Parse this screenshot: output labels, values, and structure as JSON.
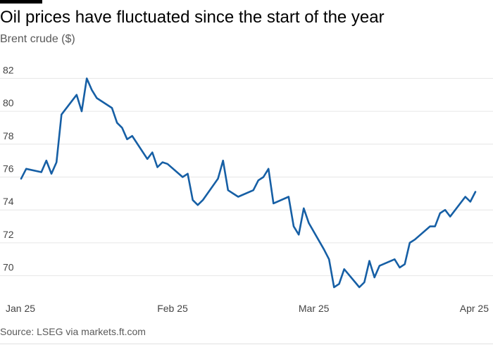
{
  "header": {
    "title": "Oil prices have fluctuated since the start of the year",
    "subtitle": "Brent crude ($)"
  },
  "footer": {
    "source": "Source: LSEG via markets.ft.com"
  },
  "colors": {
    "series": "#165fa5"
  },
  "chart_data": {
    "type": "line",
    "title": "Oil prices have fluctuated since the start of the year",
    "subtitle": "Brent crude ($)",
    "xlabel": "",
    "ylabel": "",
    "ylim": [
      69,
      83
    ],
    "xlim": [
      "2025-01-02",
      "2025-04-02"
    ],
    "yticks": [
      70,
      72,
      74,
      76,
      78,
      80,
      82
    ],
    "xticks": [
      {
        "date": "2025-01-01",
        "label": "Jan 25"
      },
      {
        "date": "2025-02-01",
        "label": "Feb 25"
      },
      {
        "date": "2025-03-01",
        "label": "Mar 25"
      },
      {
        "date": "2025-04-01",
        "label": "Apr 25"
      }
    ],
    "grid": "horizontal",
    "legend": "none",
    "x": [
      "2025-01-02",
      "2025-01-03",
      "2025-01-06",
      "2025-01-07",
      "2025-01-08",
      "2025-01-09",
      "2025-01-10",
      "2025-01-13",
      "2025-01-14",
      "2025-01-15",
      "2025-01-16",
      "2025-01-17",
      "2025-01-20",
      "2025-01-21",
      "2025-01-22",
      "2025-01-23",
      "2025-01-24",
      "2025-01-27",
      "2025-01-28",
      "2025-01-29",
      "2025-01-30",
      "2025-01-31",
      "2025-02-03",
      "2025-02-04",
      "2025-02-05",
      "2025-02-06",
      "2025-02-07",
      "2025-02-10",
      "2025-02-11",
      "2025-02-12",
      "2025-02-13",
      "2025-02-14",
      "2025-02-17",
      "2025-02-18",
      "2025-02-19",
      "2025-02-20",
      "2025-02-21",
      "2025-02-24",
      "2025-02-25",
      "2025-02-26",
      "2025-02-27",
      "2025-02-28",
      "2025-03-03",
      "2025-03-04",
      "2025-03-05",
      "2025-03-06",
      "2025-03-07",
      "2025-03-10",
      "2025-03-11",
      "2025-03-12",
      "2025-03-13",
      "2025-03-14",
      "2025-03-17",
      "2025-03-18",
      "2025-03-19",
      "2025-03-20",
      "2025-03-21",
      "2025-03-24",
      "2025-03-25",
      "2025-03-26",
      "2025-03-27",
      "2025-03-28",
      "2025-03-31",
      "2025-04-01",
      "2025-04-02"
    ],
    "series": [
      {
        "values": [
          75.9,
          76.5,
          76.3,
          77.0,
          76.2,
          76.9,
          79.8,
          81.0,
          80.0,
          82.0,
          81.3,
          80.8,
          80.2,
          79.3,
          79.0,
          78.3,
          78.5,
          77.1,
          77.5,
          76.6,
          76.9,
          76.8,
          76.0,
          76.2,
          74.6,
          74.3,
          74.6,
          75.9,
          77.0,
          75.2,
          75.0,
          74.8,
          75.2,
          75.8,
          76.0,
          76.5,
          74.4,
          74.8,
          73.0,
          72.5,
          74.1,
          73.2,
          71.6,
          71.0,
          69.3,
          69.5,
          70.4,
          69.3,
          69.6,
          70.9,
          69.9,
          70.6,
          71.0,
          70.5,
          70.7,
          72.0,
          72.2,
          73.0,
          73.0,
          73.8,
          74.0,
          73.6,
          74.8,
          74.5,
          75.1
        ]
      }
    ]
  }
}
